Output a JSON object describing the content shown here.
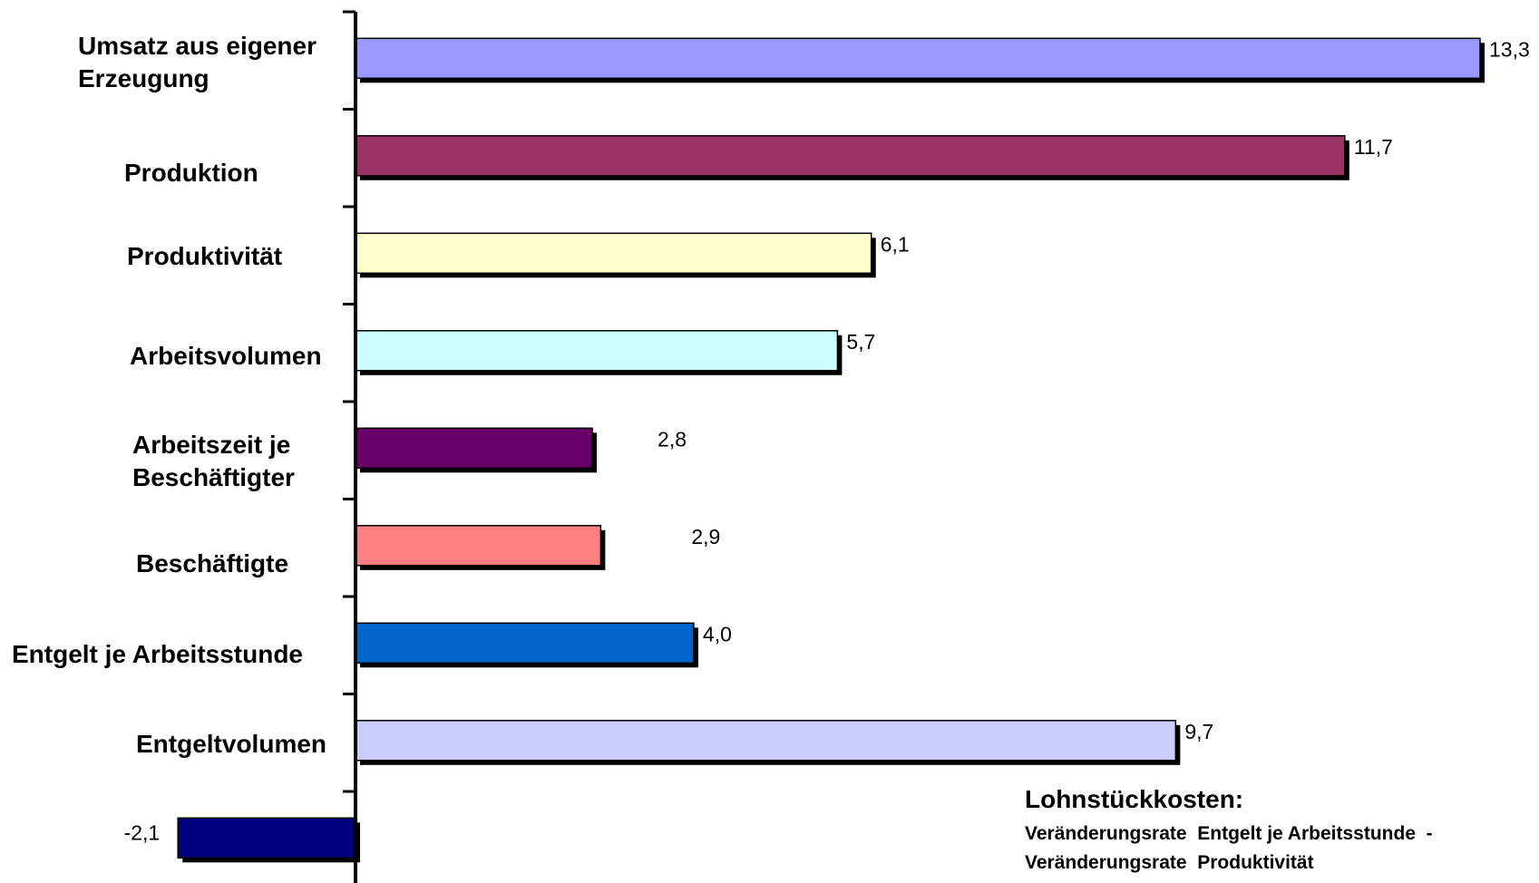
{
  "chart_data": {
    "type": "bar",
    "orientation": "horizontal",
    "categories": [
      "Umsatz aus eigener\nErzeugung",
      "Produktion",
      "Produktivität",
      "Arbeitsvolumen",
      "Arbeitszeit je\nBeschäftigter",
      "Beschäftigte",
      "Entgelt je Arbeitsstunde",
      "Entgeltvolumen",
      ""
    ],
    "values": [
      13.3,
      11.7,
      6.1,
      5.7,
      2.8,
      2.9,
      4.0,
      9.7,
      -2.1
    ],
    "value_labels": [
      "13,3",
      "11,7",
      "6,1",
      "5,7",
      "2,8",
      "2,9",
      "4,0",
      "9,7",
      "-2,1"
    ],
    "colors": [
      "#9999ff",
      "#993366",
      "#ffffcc",
      "#ccffff",
      "#660066",
      "#ff8080",
      "#0066cc",
      "#ccccff",
      "#000080"
    ],
    "xlim": [
      -2.1,
      13.3
    ],
    "grid": false,
    "legend": "none",
    "annotation": {
      "title": "Lohnstückkosten:",
      "lines": [
        "Veränderungsrate  Entgelt je Arbeitsstunde  -",
        "Veränderungsrate  Produktivität"
      ]
    }
  }
}
